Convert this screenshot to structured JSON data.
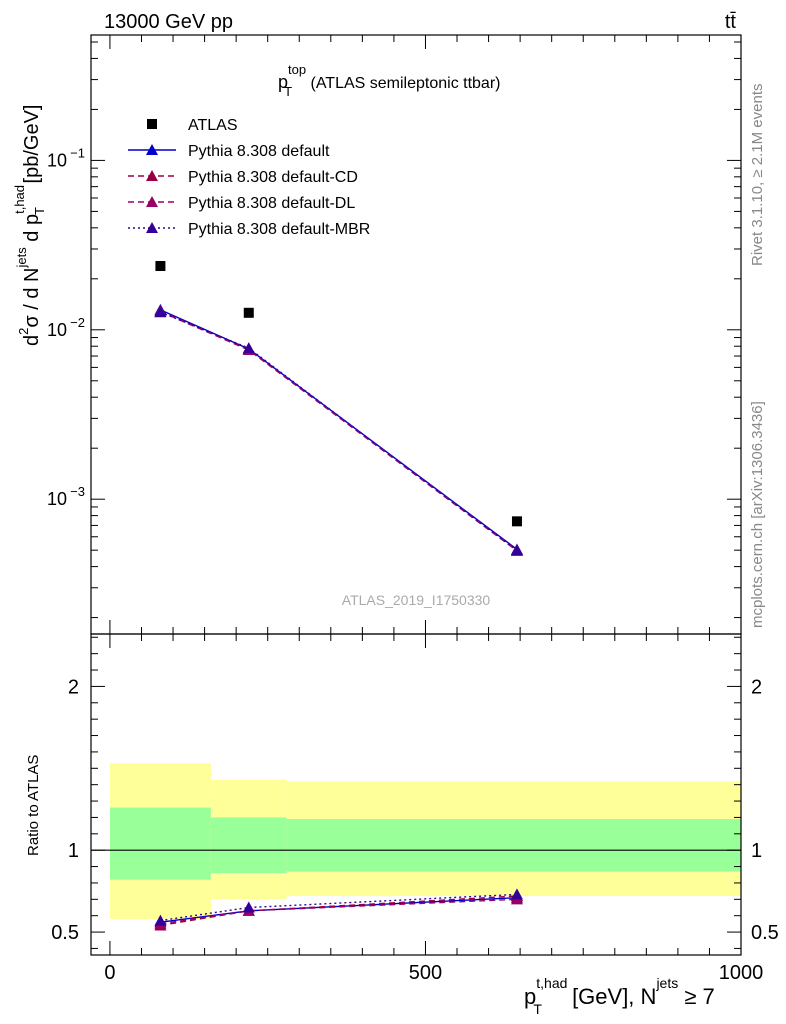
{
  "header": {
    "left": "13000 GeV pp",
    "right": "tt̄"
  },
  "side_text": {
    "rivet": "Rivet 3.1.10, ≥ 2.1M events",
    "mcplots": "mcplots.cern.ch [arXiv:1306.3436]"
  },
  "watermark": "ATLAS_2019_I1750330",
  "legend_title": {
    "main": "p",
    "sup": "top",
    "sub": "T",
    "rest": " (ATLAS semileptonic ttbar)"
  },
  "top_ylabel": {
    "d2": "d",
    "sup2": "2",
    "sigma": "σ / d N",
    "jets": "jets",
    "dp": " d p",
    "thad": "t,had",
    "T": "T",
    "unit": " [pb/GeV]"
  },
  "bottom_ylabel": "Ratio to ATLAS",
  "xlabel": {
    "p": "p",
    "thad": "t,had",
    "T": "T",
    "unit": " [GeV], N",
    "jets": "jets",
    "cond": " ≥ 7"
  },
  "chart_data": [
    {
      "panel": "main",
      "type": "scatter",
      "log_y": true,
      "xlim": [
        -30,
        1000
      ],
      "ylim": [
        0.00016,
        0.55
      ],
      "y_ticks": [
        {
          "v": 0.1,
          "base": "10",
          "exp": "−1"
        },
        {
          "v": 0.01,
          "base": "10",
          "exp": "−2"
        },
        {
          "v": 0.001,
          "base": "10",
          "exp": "−3"
        }
      ],
      "series": [
        {
          "name": "ATLAS",
          "marker": "square",
          "color": "#000000",
          "dash": "none",
          "x": [
            80,
            220,
            645
          ],
          "y": [
            0.0238,
            0.0126,
            0.00074
          ]
        },
        {
          "name": "Pythia 8.308 default",
          "marker": "triangle",
          "color": "#0000cc",
          "dash": "solid",
          "x": [
            80,
            220,
            645
          ],
          "y": [
            0.0131,
            0.0077,
            0.000505
          ]
        },
        {
          "name": "Pythia 8.308 default-CD",
          "marker": "triangle",
          "color": "#990044",
          "dash": "dashed",
          "x": [
            80,
            220,
            645
          ],
          "y": [
            0.0128,
            0.0076,
            0.000495
          ]
        },
        {
          "name": "Pythia 8.308 default-DL",
          "marker": "triangle",
          "color": "#990066",
          "dash": "dashed",
          "x": [
            80,
            220,
            645
          ],
          "y": [
            0.0129,
            0.0076,
            0.0005
          ]
        },
        {
          "name": "Pythia 8.308 default-MBR",
          "marker": "triangle",
          "color": "#330099",
          "dash": "dotted",
          "x": [
            80,
            220,
            645
          ],
          "y": [
            0.0127,
            0.0078,
            0.000498
          ]
        }
      ]
    },
    {
      "panel": "ratio",
      "type": "line",
      "xlim": [
        -30,
        1000
      ],
      "ylim": [
        0.36,
        2.32
      ],
      "y_ticks": [
        0.5,
        1,
        2
      ],
      "x_ticks": [
        0,
        500,
        1000
      ],
      "bands": [
        {
          "x0": 0,
          "x1": 160,
          "outer": [
            0.58,
            1.53
          ],
          "inner": [
            0.82,
            1.26
          ]
        },
        {
          "x0": 160,
          "x1": 280,
          "outer": [
            0.7,
            1.43
          ],
          "inner": [
            0.86,
            1.2
          ]
        },
        {
          "x0": 280,
          "x1": 1000,
          "outer": [
            0.72,
            1.42
          ],
          "inner": [
            0.87,
            1.19
          ]
        }
      ],
      "band_colors": {
        "outer": "#ffff99",
        "inner": "#99ff99"
      },
      "series": [
        {
          "name": "Pythia 8.308 default",
          "color": "#0000cc",
          "dash": "solid",
          "x": [
            80,
            220,
            645
          ],
          "y": [
            0.56,
            0.63,
            0.71
          ]
        },
        {
          "name": "Pythia 8.308 default-CD",
          "color": "#990044",
          "dash": "dashed",
          "x": [
            80,
            220,
            645
          ],
          "y": [
            0.54,
            0.63,
            0.72
          ]
        },
        {
          "name": "Pythia 8.308 default-DL",
          "color": "#990066",
          "dash": "dashed",
          "x": [
            80,
            220,
            645
          ],
          "y": [
            0.55,
            0.63,
            0.7
          ]
        },
        {
          "name": "Pythia 8.308 default-MBR",
          "color": "#330099",
          "dash": "dotted",
          "x": [
            80,
            220,
            645
          ],
          "y": [
            0.57,
            0.65,
            0.73
          ]
        }
      ]
    }
  ]
}
